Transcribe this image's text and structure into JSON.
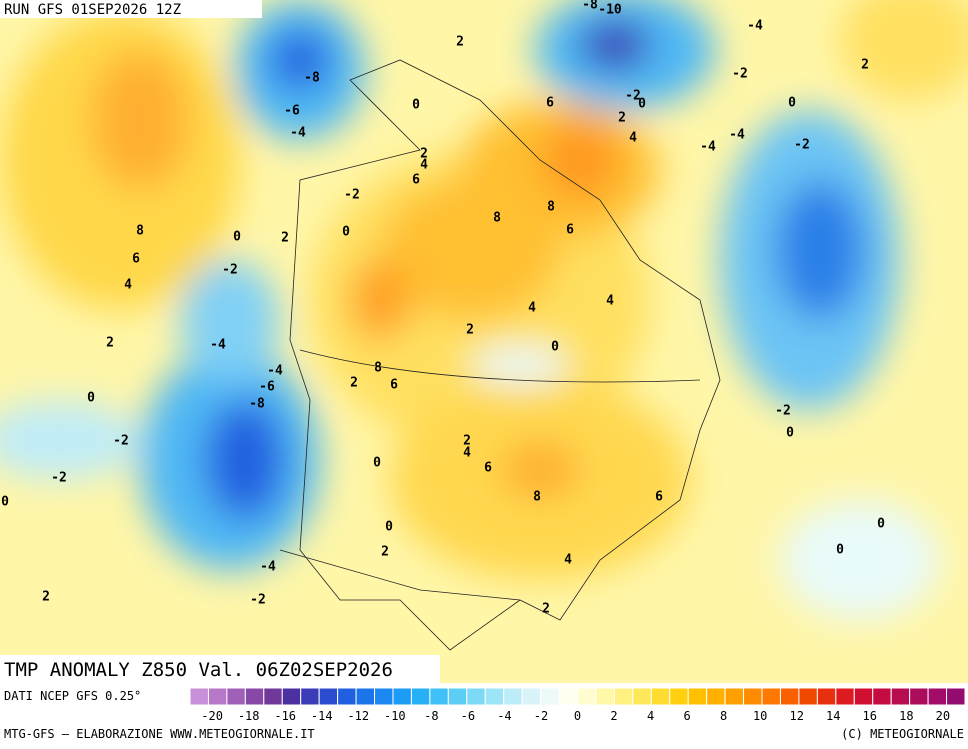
{
  "header": {
    "run": "RUN GFS 01SEP2026 12Z"
  },
  "map": {
    "title": "TMP ANOMALY Z850 Val. 06Z02SEP2026",
    "contour_labels": [
      2,
      -8,
      -6,
      -4,
      0,
      -10,
      -8,
      -4,
      -2,
      2,
      0,
      6,
      -2,
      0,
      2,
      4,
      -4,
      -4,
      -2,
      2,
      4,
      6,
      -2,
      8,
      8,
      6,
      0,
      8,
      0,
      2,
      6,
      -2,
      4,
      4,
      4,
      2,
      -4,
      2,
      0,
      8,
      -4,
      6,
      -6,
      2,
      0,
      -8,
      -2,
      0,
      -2,
      2,
      4,
      6,
      0,
      -2,
      8,
      6,
      0,
      0,
      0,
      2,
      0,
      4,
      -4,
      2,
      -2,
      2
    ]
  },
  "colorbar": {
    "source": "DATI NCEP GFS 0.25°",
    "ticks": [
      -20,
      -18,
      -16,
      -14,
      -12,
      -10,
      -8,
      -6,
      -4,
      -2,
      0,
      2,
      4,
      6,
      8,
      10,
      12,
      14,
      16,
      18,
      20
    ],
    "colors": [
      "#c890d8",
      "#b878c8",
      "#a060b8",
      "#8848a8",
      "#703898",
      "#4a30a0",
      "#3a3cb8",
      "#2c4cd0",
      "#2060e0",
      "#1c74ea",
      "#1a88f0",
      "#1c9cf4",
      "#28b0f6",
      "#40c0f6",
      "#5ccef6",
      "#7cdaf6",
      "#9ce4f6",
      "#bcecf8",
      "#d8f4f8",
      "#eefafa",
      "#fffff0",
      "#fffcd0",
      "#fff8a8",
      "#fff080",
      "#ffe858",
      "#ffdc30",
      "#ffd010",
      "#ffc000",
      "#ffb000",
      "#ffa000",
      "#ff8c00",
      "#ff7800",
      "#f86000",
      "#f04800",
      "#e83010",
      "#dc1c20",
      "#d01030",
      "#c40c40",
      "#b80c50",
      "#ac0c5c",
      "#a00c68",
      "#940c70"
    ]
  },
  "footer": {
    "left": "MTG-GFS — ELABORAZIONE WWW.METEOGIORNALE.IT",
    "right": "(C) METEOGIORNALE"
  }
}
